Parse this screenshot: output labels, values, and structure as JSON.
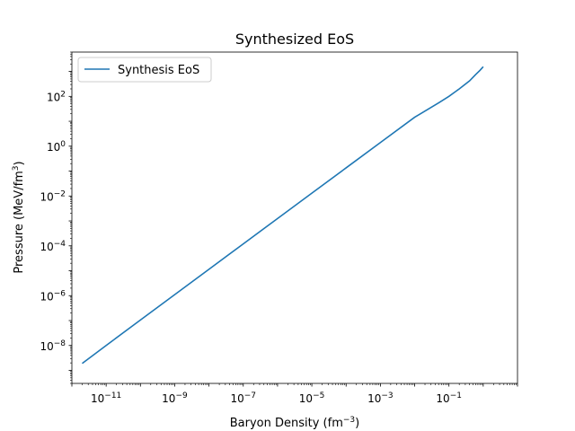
{
  "chart_data": {
    "type": "line",
    "title": "Synthesized EoS",
    "xlabel": "Baryon Density (fm",
    "xlabel_exp": "−3",
    "xlabel_end": ")",
    "ylabel": "Pressure (MeV/fm",
    "ylabel_exp": "3",
    "ylabel_end": ")",
    "xscale": "log",
    "yscale": "log",
    "xlim": [
      1e-12,
      10
    ],
    "ylim": [
      3e-10,
      6000
    ],
    "x_ticks": [
      {
        "value": 1e-11,
        "base": "10",
        "exp": "−11"
      },
      {
        "value": 1e-09,
        "base": "10",
        "exp": "−9"
      },
      {
        "value": 1e-07,
        "base": "10",
        "exp": "−7"
      },
      {
        "value": 1e-05,
        "base": "10",
        "exp": "−5"
      },
      {
        "value": 0.001,
        "base": "10",
        "exp": "−3"
      },
      {
        "value": 0.1,
        "base": "10",
        "exp": "−1"
      }
    ],
    "y_ticks": [
      {
        "value": 1e-08,
        "base": "10",
        "exp": "−8"
      },
      {
        "value": 1e-06,
        "base": "10",
        "exp": "−6"
      },
      {
        "value": 0.0001,
        "base": "10",
        "exp": "−4"
      },
      {
        "value": 0.01,
        "base": "10",
        "exp": "−2"
      },
      {
        "value": 1,
        "base": "10",
        "exp": "0"
      },
      {
        "value": 100,
        "base": "10",
        "exp": "2"
      }
    ],
    "legend_position": "top-left",
    "grid": false,
    "series": [
      {
        "name": "Synthesis EoS",
        "color": "#1f77b4",
        "x": [
          2e-12,
          1e-11,
          1e-10,
          1e-09,
          1e-08,
          1e-07,
          1e-06,
          1e-05,
          0.0001,
          0.001,
          0.01,
          0.05,
          0.1,
          0.2,
          0.4,
          0.6,
          0.8,
          1.0
        ],
        "y": [
          1.9e-09,
          1e-08,
          1.05e-07,
          1.1e-06,
          1.15e-05,
          0.00012,
          0.00125,
          0.013,
          0.135,
          1.4,
          14.5,
          55,
          100,
          200,
          420,
          750,
          1100,
          1550
        ]
      }
    ]
  }
}
